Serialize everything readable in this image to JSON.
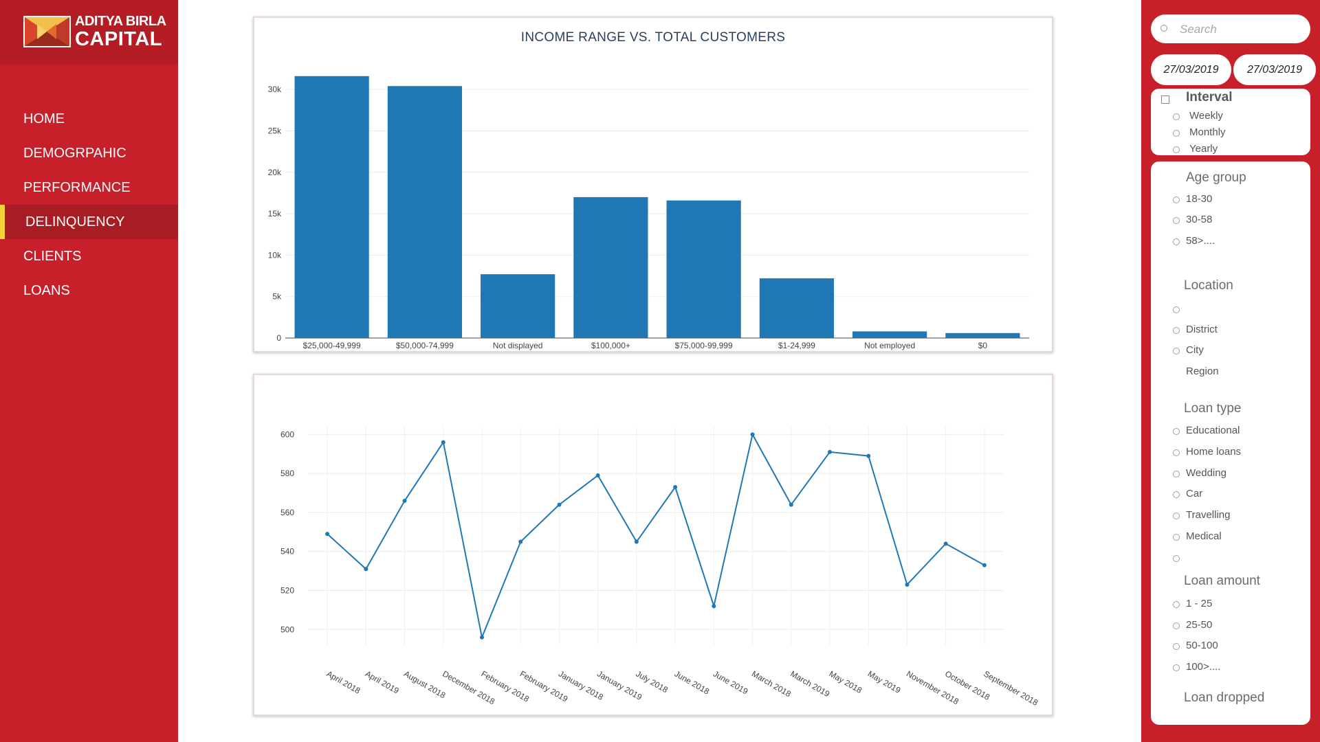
{
  "brand": {
    "line1": "ADITYA BIRLA",
    "line2": "CAPITAL",
    "colors": {
      "primary": "#c8202a",
      "dark": "#b51d25",
      "active": "#a81c24",
      "indicator": "#f5d33a"
    }
  },
  "nav": {
    "items": [
      {
        "label": "HOME",
        "active": false
      },
      {
        "label": "DEMOGRPAHIC",
        "active": false
      },
      {
        "label": "PERFORMANCE",
        "active": false
      },
      {
        "label": "DELINQUENCY",
        "active": true
      },
      {
        "label": "CLIENTS",
        "active": false
      },
      {
        "label": "LOANS",
        "active": false
      }
    ]
  },
  "filters": {
    "search": {
      "placeholder": "Search",
      "value": "",
      "icon": "search-icon"
    },
    "date_from": "27/03/2019",
    "date_to": "27/03/2019",
    "interval": {
      "title": "Interval",
      "options": [
        "Weekly",
        "Monthly",
        "Yearly"
      ]
    },
    "age_group": {
      "title": "Age group",
      "options": [
        "18-30",
        "30-58",
        "58>...."
      ]
    },
    "location": {
      "title": "Location",
      "options": [
        "",
        "District",
        "City"
      ],
      "extra": "Region"
    },
    "loan_type": {
      "title": "Loan type",
      "options": [
        "Educational",
        "Home loans",
        "Wedding",
        "Car",
        "Travelling",
        "Medical",
        ""
      ]
    },
    "loan_amount": {
      "title": "Loan amount",
      "options": [
        "1 - 25",
        "25-50",
        "50-100",
        "100>...."
      ]
    },
    "loan_dropped": {
      "title": "Loan dropped"
    }
  },
  "chart_data": [
    {
      "type": "bar",
      "title": "INCOME RANGE VS. TOTAL CUSTOMERS",
      "color": "#1f77b4",
      "categories": [
        "$25,000-49,999",
        "$50,000-74,999",
        "Not displayed",
        "$100,000+",
        "$75,000-99,999",
        "$1-24,999",
        "Not employed",
        "$0"
      ],
      "values": [
        31600,
        30400,
        7700,
        17000,
        16600,
        7200,
        800,
        600
      ],
      "ylim": [
        0,
        32000
      ],
      "yticks": [
        0,
        5000,
        10000,
        15000,
        20000,
        25000,
        30000
      ],
      "yticklabels": [
        "0",
        "5k",
        "10k",
        "15k",
        "20k",
        "25k",
        "30k"
      ],
      "grid": true
    },
    {
      "type": "line",
      "color": "#1f77b4",
      "markers": true,
      "categories": [
        "April 2018",
        "April 2019",
        "August 2018",
        "December 2018",
        "February 2018",
        "February 2019",
        "January 2018",
        "January 2019",
        "July 2018",
        "June 2018",
        "June 2019",
        "March 2018",
        "March 2019",
        "May 2018",
        "May 2019",
        "November 2018",
        "October 2018",
        "September 2018"
      ],
      "values": [
        549,
        531,
        566,
        596,
        496,
        545,
        564,
        579,
        545,
        573,
        512,
        600,
        564,
        591,
        589,
        523,
        544,
        533
      ],
      "ylim": [
        492,
        604
      ],
      "yticks": [
        500,
        520,
        540,
        560,
        580,
        600
      ],
      "grid": true
    }
  ]
}
